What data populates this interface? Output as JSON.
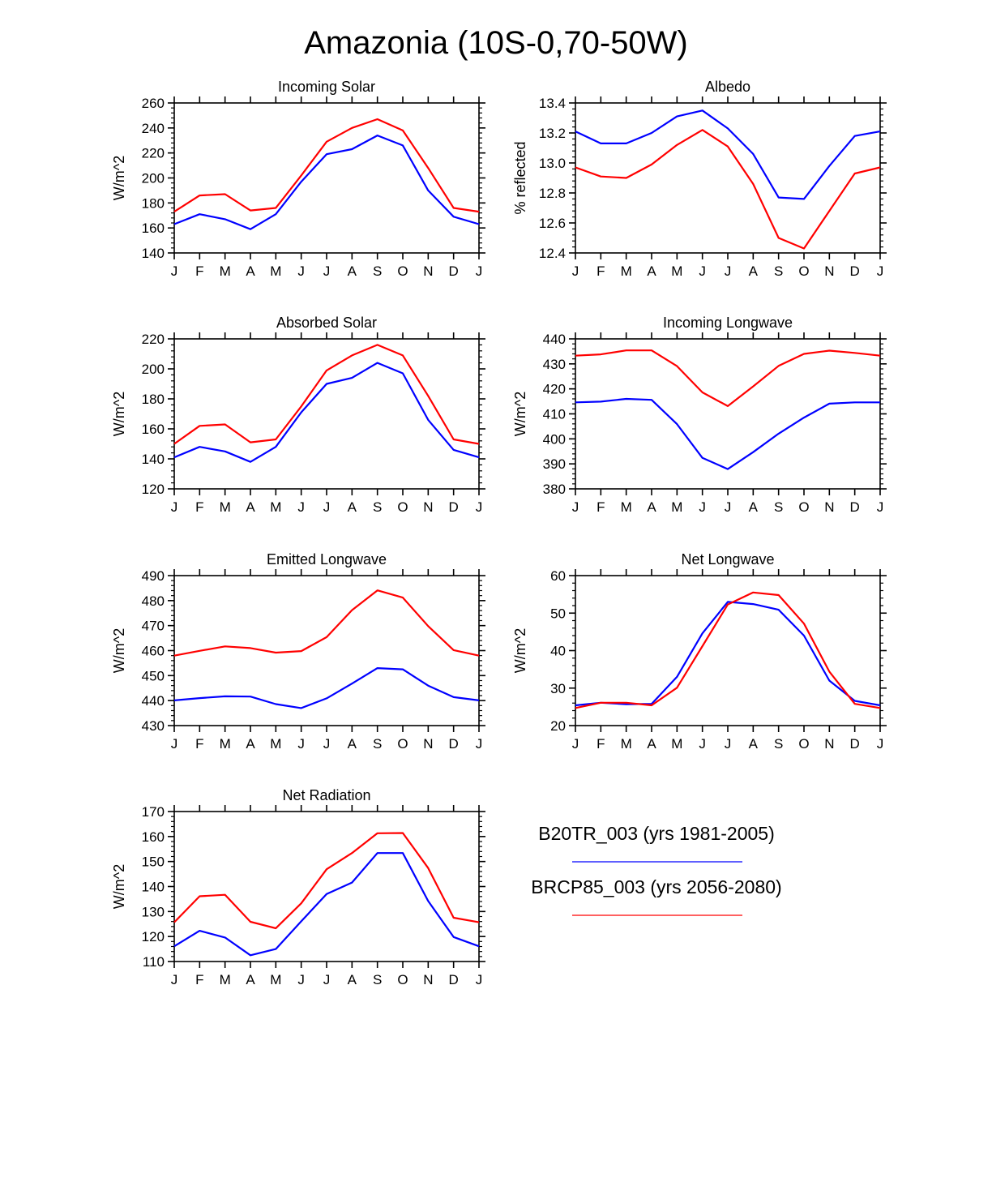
{
  "figure": {
    "title": "Amazonia (10S-0,70-50W)"
  },
  "legend": [
    {
      "name": "B20TR_003 (yrs 1981-2005)",
      "color": "#0000ff"
    },
    {
      "name": "BRCP85_003 (yrs 2056-2080)",
      "color": "#ff0000"
    }
  ],
  "chart_data": [
    {
      "type": "line",
      "title": "Incoming Solar",
      "ylabel": "W/m^2",
      "x": [
        "J",
        "F",
        "M",
        "A",
        "M",
        "J",
        "J",
        "A",
        "S",
        "O",
        "N",
        "D",
        "J"
      ],
      "ylim": [
        140,
        260
      ],
      "yticks": [
        140,
        160,
        180,
        200,
        220,
        240,
        260
      ],
      "ytick_labels": [
        "140",
        "160",
        "180",
        "200",
        "220",
        "240",
        "260"
      ],
      "series": [
        {
          "name": "B20TR_003 (yrs 1981-2005)",
          "color": "#0000ff",
          "values": [
            163,
            171,
            167,
            159,
            171,
            197,
            219,
            223,
            234,
            226,
            190,
            169,
            163
          ]
        },
        {
          "name": "BRCP85_003 (yrs 2056-2080)",
          "color": "#ff0000",
          "values": [
            173,
            186,
            187,
            174,
            176,
            202,
            229,
            240,
            247,
            238,
            208,
            176,
            173
          ]
        }
      ]
    },
    {
      "type": "line",
      "title": "Albedo",
      "ylabel": "% reflected",
      "x": [
        "J",
        "F",
        "M",
        "A",
        "M",
        "J",
        "J",
        "A",
        "S",
        "O",
        "N",
        "D",
        "J"
      ],
      "ylim": [
        12.4,
        13.4
      ],
      "yticks": [
        12.4,
        12.6,
        12.8,
        13.0,
        13.2,
        13.4
      ],
      "ytick_labels": [
        "12.4",
        "12.6",
        "12.8",
        "13.0",
        "13.2",
        "13.4"
      ],
      "series": [
        {
          "name": "B20TR_003 (yrs 1981-2005)",
          "color": "#0000ff",
          "values": [
            13.21,
            13.13,
            13.13,
            13.2,
            13.31,
            13.35,
            13.23,
            13.06,
            12.77,
            12.76,
            12.98,
            13.18,
            13.21
          ]
        },
        {
          "name": "BRCP85_003 (yrs 2056-2080)",
          "color": "#ff0000",
          "values": [
            12.97,
            12.91,
            12.9,
            12.99,
            13.12,
            13.22,
            13.11,
            12.86,
            12.5,
            12.43,
            12.68,
            12.93,
            12.97
          ]
        }
      ]
    },
    {
      "type": "line",
      "title": "Absorbed Solar",
      "ylabel": "W/m^2",
      "x": [
        "J",
        "F",
        "M",
        "A",
        "M",
        "J",
        "J",
        "A",
        "S",
        "O",
        "N",
        "D",
        "J"
      ],
      "ylim": [
        120,
        220
      ],
      "yticks": [
        120,
        140,
        160,
        180,
        200,
        220
      ],
      "ytick_labels": [
        "120",
        "140",
        "160",
        "180",
        "200",
        "220"
      ],
      "series": [
        {
          "name": "B20TR_003 (yrs 1981-2005)",
          "color": "#0000ff",
          "values": [
            141,
            148,
            145,
            138,
            148,
            171,
            190,
            194,
            204,
            197,
            166,
            146,
            141
          ]
        },
        {
          "name": "BRCP85_003 (yrs 2056-2080)",
          "color": "#ff0000",
          "values": [
            150,
            162,
            163,
            151,
            153,
            175,
            199,
            209,
            216,
            209,
            182,
            153,
            150
          ]
        }
      ]
    },
    {
      "type": "line",
      "title": "Incoming Longwave",
      "ylabel": "W/m^2",
      "x": [
        "J",
        "F",
        "M",
        "A",
        "M",
        "J",
        "J",
        "A",
        "S",
        "O",
        "N",
        "D",
        "J"
      ],
      "ylim": [
        380,
        440
      ],
      "yticks": [
        380,
        390,
        400,
        410,
        420,
        430,
        440
      ],
      "ytick_labels": [
        "380",
        "390",
        "400",
        "410",
        "420",
        "430",
        "440"
      ],
      "series": [
        {
          "name": "B20TR_003 (yrs 1981-2005)",
          "color": "#0000ff",
          "values": [
            414.6,
            414.9,
            416.0,
            415.6,
            405.9,
            392.4,
            387.9,
            394.7,
            402.1,
            408.5,
            414.1,
            414.6,
            414.6
          ]
        },
        {
          "name": "BRCP85_003 (yrs 2056-2080)",
          "color": "#ff0000",
          "values": [
            433.3,
            433.8,
            435.4,
            435.4,
            429.1,
            418.6,
            413.1,
            421.0,
            429.2,
            434.0,
            435.3,
            434.4,
            433.3
          ]
        }
      ]
    },
    {
      "type": "line",
      "title": "Emitted Longwave",
      "ylabel": "W/m^2",
      "x": [
        "J",
        "F",
        "M",
        "A",
        "M",
        "J",
        "J",
        "A",
        "S",
        "O",
        "N",
        "D",
        "J"
      ],
      "ylim": [
        430,
        490
      ],
      "yticks": [
        430,
        440,
        450,
        460,
        470,
        480,
        490
      ],
      "ytick_labels": [
        "430",
        "440",
        "450",
        "460",
        "470",
        "480",
        "490"
      ],
      "series": [
        {
          "name": "B20TR_003 (yrs 1981-2005)",
          "color": "#0000ff",
          "values": [
            440.1,
            441.0,
            441.7,
            441.6,
            438.6,
            437.0,
            440.9,
            446.8,
            453.0,
            452.5,
            446.0,
            441.4,
            440.1
          ]
        },
        {
          "name": "BRCP85_003 (yrs 2056-2080)",
          "color": "#ff0000",
          "values": [
            458.0,
            459.9,
            461.7,
            461.0,
            459.2,
            459.8,
            465.4,
            476.2,
            484.1,
            481.2,
            469.8,
            460.2,
            458.0
          ]
        }
      ]
    },
    {
      "type": "line",
      "title": "Net Longwave",
      "ylabel": "W/m^2",
      "x": [
        "J",
        "F",
        "M",
        "A",
        "M",
        "J",
        "J",
        "A",
        "S",
        "O",
        "N",
        "D",
        "J"
      ],
      "ylim": [
        20,
        60
      ],
      "yticks": [
        20,
        30,
        40,
        50,
        60
      ],
      "ytick_labels": [
        "20",
        "30",
        "40",
        "50",
        "60"
      ],
      "series": [
        {
          "name": "B20TR_003 (yrs 1981-2005)",
          "color": "#0000ff",
          "values": [
            25.4,
            26.1,
            25.7,
            25.8,
            33.0,
            44.6,
            53.0,
            52.4,
            50.9,
            44.0,
            32.0,
            26.6,
            25.4
          ]
        },
        {
          "name": "BRCP85_003 (yrs 2056-2080)",
          "color": "#ff0000",
          "values": [
            24.7,
            26.1,
            26.1,
            25.4,
            30.1,
            41.2,
            52.3,
            55.5,
            54.8,
            47.2,
            34.4,
            25.8,
            24.7
          ]
        }
      ]
    },
    {
      "type": "line",
      "title": "Net Radiation",
      "ylabel": "W/m^2",
      "x": [
        "J",
        "F",
        "M",
        "A",
        "M",
        "J",
        "J",
        "A",
        "S",
        "O",
        "N",
        "D",
        "J"
      ],
      "ylim": [
        110,
        170
      ],
      "yticks": [
        110,
        120,
        130,
        140,
        150,
        160,
        170
      ],
      "ytick_labels": [
        "110",
        "120",
        "130",
        "140",
        "150",
        "160",
        "170"
      ],
      "series": [
        {
          "name": "B20TR_003 (yrs 1981-2005)",
          "color": "#0000ff",
          "values": [
            116.1,
            122.3,
            119.6,
            112.5,
            115.0,
            126.1,
            137.0,
            141.6,
            153.4,
            153.4,
            134.2,
            119.8,
            116.1
          ]
        },
        {
          "name": "BRCP85_003 (yrs 2056-2080)",
          "color": "#ff0000",
          "values": [
            125.7,
            136.1,
            136.7,
            125.9,
            123.3,
            133.3,
            146.9,
            153.4,
            161.3,
            161.4,
            147.4,
            127.5,
            125.7
          ]
        }
      ]
    }
  ]
}
